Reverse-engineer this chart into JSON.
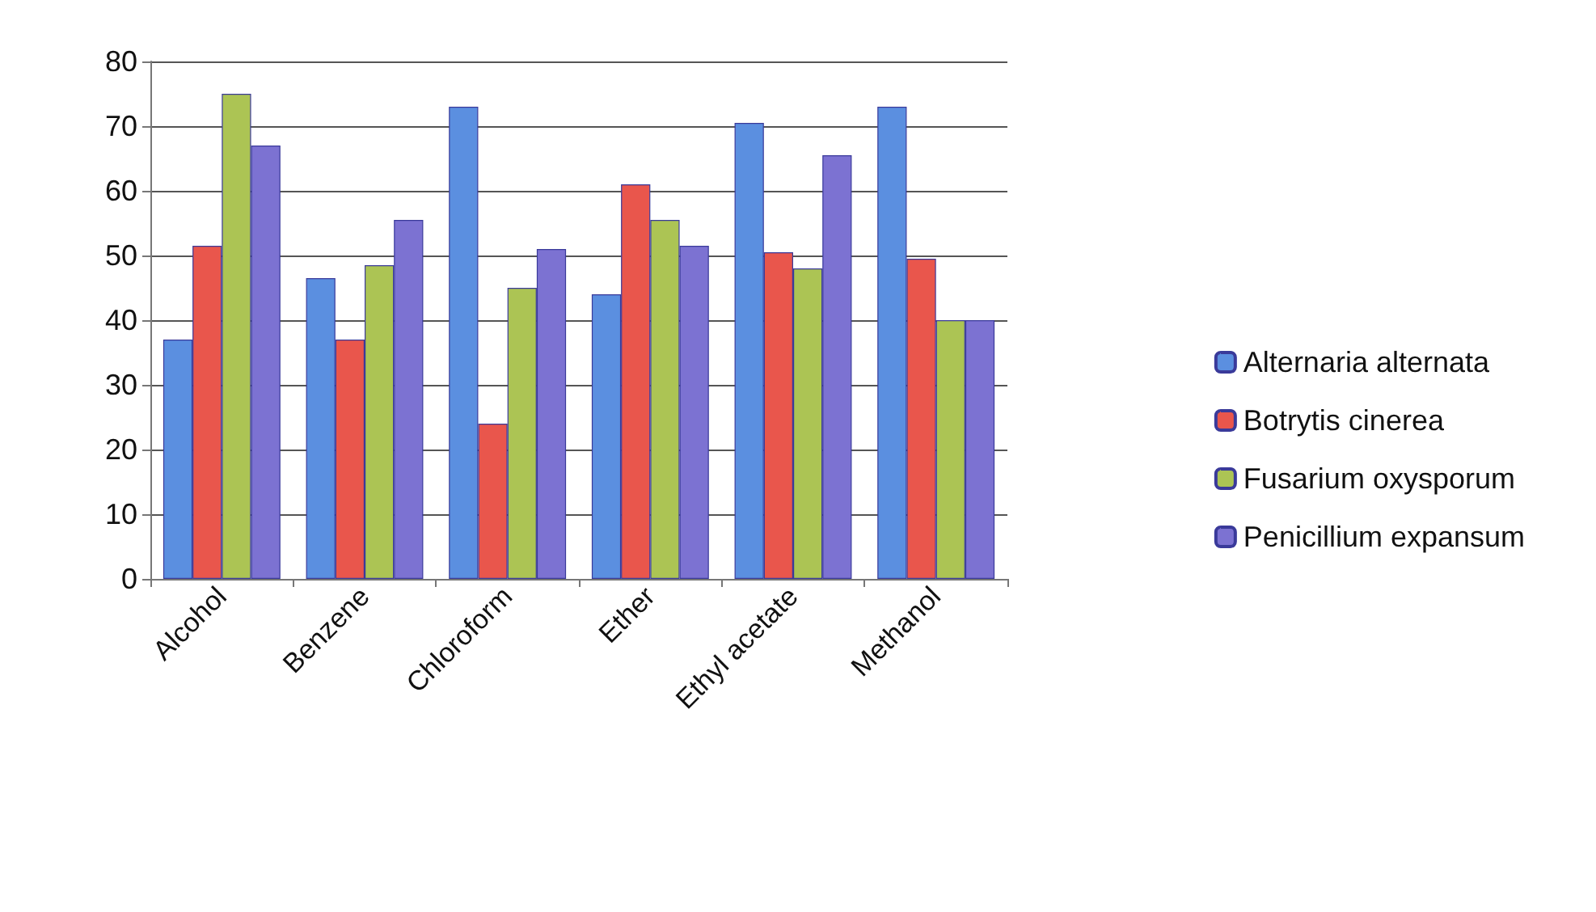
{
  "chart_data": {
    "type": "bar",
    "categories": [
      "Alcohol",
      "Benzene",
      "Chloroform",
      "Ether",
      "Ethyl acetate",
      "Methanol"
    ],
    "series": [
      {
        "name": "Alternaria alternata",
        "color": "#5b8fe0",
        "values": [
          37,
          46.5,
          73,
          44,
          70.5,
          73
        ]
      },
      {
        "name": "Botrytis cinerea",
        "color": "#e9564c",
        "values": [
          51.5,
          37,
          24,
          61,
          50.5,
          49.5
        ]
      },
      {
        "name": "Fusarium oxysporum",
        "color": "#acc454",
        "values": [
          75,
          48.5,
          45,
          55.5,
          48,
          40
        ]
      },
      {
        "name": "Penicillium expansum",
        "color": "#7c72d2",
        "values": [
          67,
          55.5,
          51,
          51.5,
          65.5,
          40
        ]
      }
    ],
    "ylim": [
      0,
      80
    ],
    "yticks": [
      0,
      10,
      20,
      30,
      40,
      50,
      60,
      70,
      80
    ],
    "grid": "y",
    "legend": "right"
  }
}
